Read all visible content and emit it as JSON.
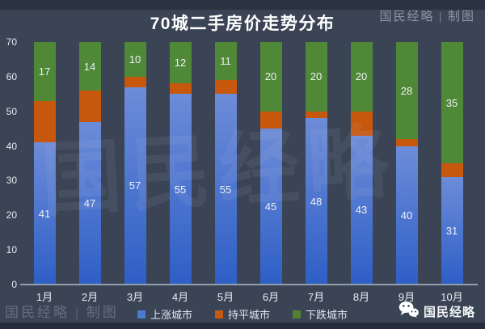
{
  "header": {
    "title": "70城二手房价走势分布",
    "credit": "国民经略 | 制图"
  },
  "watermarks": {
    "center": "国民经略",
    "bottom_left": "国民经略 | 制图"
  },
  "footer": {
    "brand": "国民经略"
  },
  "colors": {
    "up_top": "#6d8cd8",
    "up_bottom": "#2e5fc6",
    "flat": "#c8570e",
    "down": "#4f8837",
    "legend_up": "#4a7bd0",
    "legend_flat": "#c55a11",
    "legend_down": "#548235",
    "background": "#3a4455"
  },
  "chart_data": {
    "type": "bar",
    "stacked": true,
    "title": "70城二手房价走势分布",
    "categories": [
      "1月",
      "2月",
      "3月",
      "4月",
      "5月",
      "6月",
      "7月",
      "8月",
      "9月",
      "10月"
    ],
    "series": [
      {
        "name": "上涨城市",
        "key": "up",
        "labels_visible": true,
        "values": [
          41,
          47,
          57,
          55,
          55,
          45,
          48,
          43,
          40,
          31
        ]
      },
      {
        "name": "持平城市",
        "key": "flat",
        "labels_visible": false,
        "values": [
          12,
          9,
          3,
          3,
          4,
          5,
          2,
          7,
          2,
          4
        ]
      },
      {
        "name": "下跌城市",
        "key": "down",
        "labels_visible": true,
        "values": [
          17,
          14,
          10,
          12,
          11,
          20,
          20,
          20,
          28,
          35
        ]
      }
    ],
    "total_per_bar": 70,
    "xlabel": "",
    "ylabel": "",
    "ylim": [
      0,
      70
    ],
    "ytick_step": 10,
    "grid": false,
    "legend_position": "bottom"
  }
}
